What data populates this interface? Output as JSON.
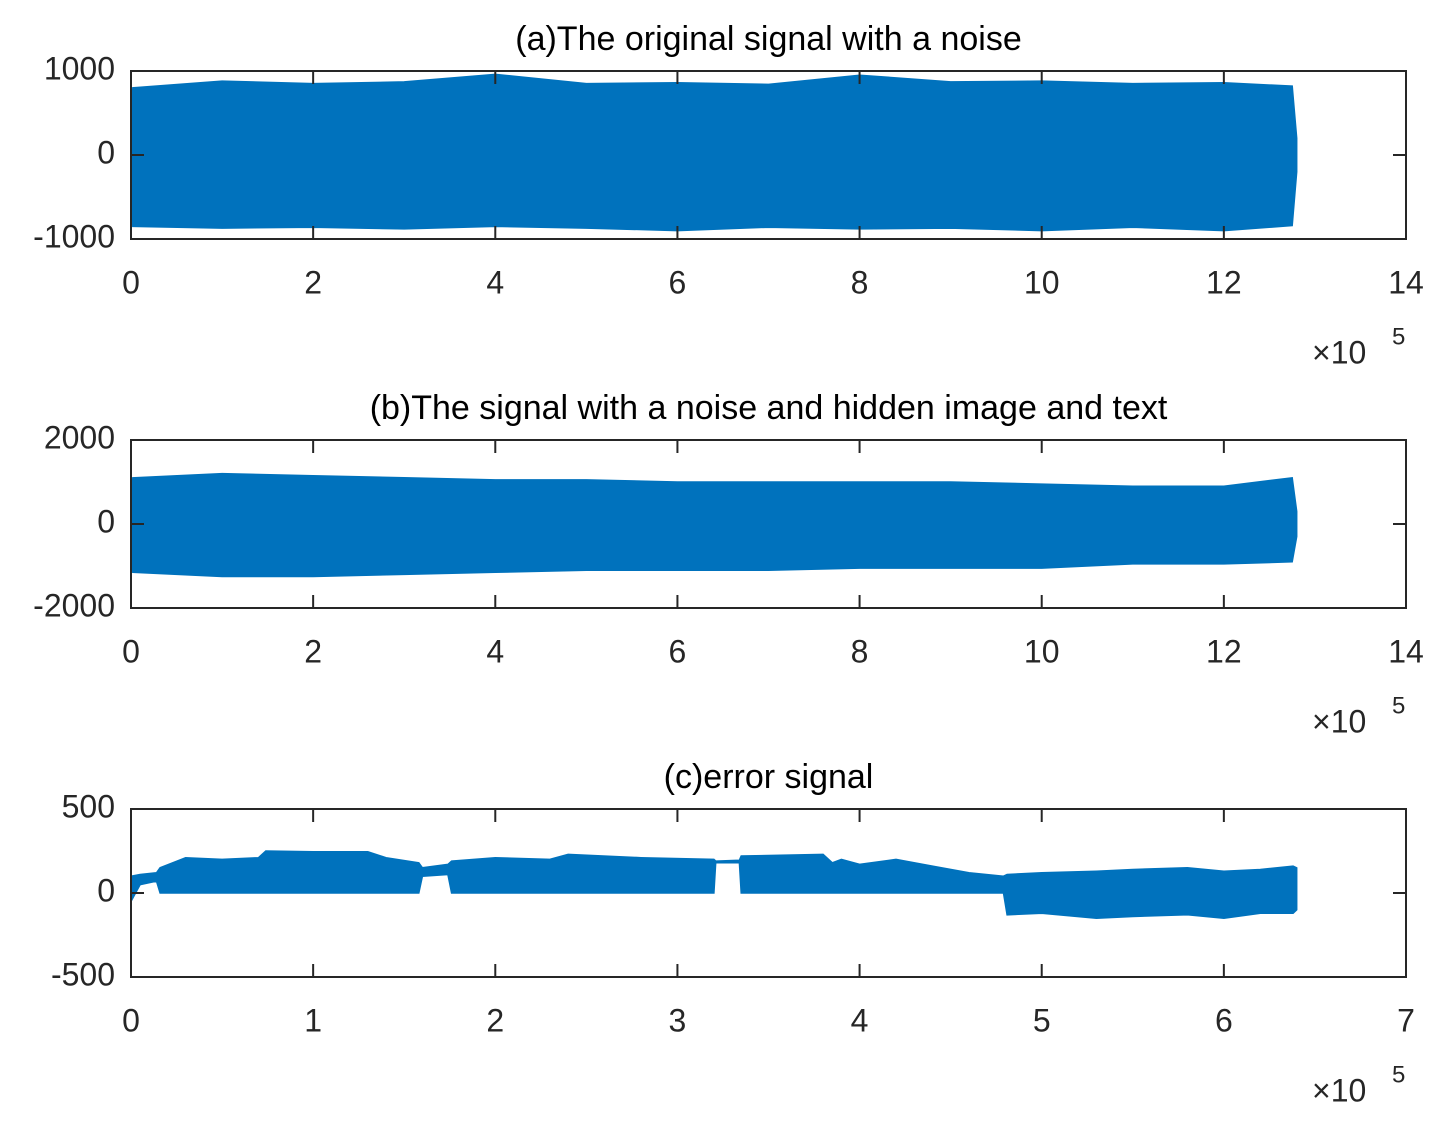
{
  "chart_data": [
    {
      "type": "band",
      "title": "(a)The original signal with a noise",
      "color": "#0072BD",
      "x": [
        0,
        0.02,
        1,
        2,
        3,
        4,
        5,
        6,
        7,
        8,
        9,
        10,
        11,
        12,
        12.75,
        12.8
      ],
      "upper": [
        0,
        800,
        880,
        850,
        870,
        960,
        850,
        860,
        840,
        950,
        870,
        880,
        850,
        860,
        820,
        200
      ],
      "lower": [
        0,
        -850,
        -870,
        -860,
        -880,
        -850,
        -870,
        -900,
        -860,
        -880,
        -870,
        -900,
        -860,
        -900,
        -840,
        -200
      ],
      "xlim": [
        0,
        14
      ],
      "xticks": [
        0,
        2,
        4,
        6,
        8,
        10,
        12,
        14
      ],
      "ylim": [
        -1000,
        1000
      ],
      "yticks": [
        -1000,
        0,
        1000
      ],
      "x_multiplier": "×10",
      "x_exponent": "5"
    },
    {
      "type": "band",
      "title": "(b)The signal with a noise and hidden image and text",
      "color": "#0072BD",
      "x": [
        0,
        0.02,
        1,
        2,
        3,
        4,
        5,
        6,
        7,
        8,
        9,
        10,
        11,
        12,
        12.75,
        12.8
      ],
      "upper": [
        0,
        1100,
        1200,
        1150,
        1100,
        1050,
        1050,
        1000,
        1000,
        1000,
        1000,
        950,
        900,
        900,
        1100,
        300
      ],
      "lower": [
        0,
        -1150,
        -1250,
        -1250,
        -1200,
        -1150,
        -1100,
        -1100,
        -1100,
        -1050,
        -1050,
        -1050,
        -950,
        -950,
        -900,
        -300
      ],
      "xlim": [
        0,
        14
      ],
      "xticks": [
        0,
        2,
        4,
        6,
        8,
        10,
        12,
        14
      ],
      "ylim": [
        -2000,
        2000
      ],
      "yticks": [
        -2000,
        0,
        2000
      ],
      "x_multiplier": "×10",
      "x_exponent": "5"
    },
    {
      "type": "band",
      "title": "(c)error signal",
      "color": "#0072BD",
      "x": [
        0,
        0.05,
        0.14,
        0.16,
        0.3,
        0.5,
        0.7,
        0.74,
        1.0,
        1.3,
        1.4,
        1.58,
        1.6,
        1.74,
        1.76,
        2.0,
        2.3,
        2.4,
        2.8,
        3.2,
        3.21,
        3.34,
        3.35,
        3.8,
        3.85,
        3.9,
        4.0,
        4.2,
        4.4,
        4.6,
        4.79,
        4.81,
        5.0,
        5.3,
        5.5,
        5.8,
        6.0,
        6.2,
        6.38,
        6.4
      ],
      "upper": [
        100,
        110,
        120,
        150,
        210,
        200,
        210,
        250,
        245,
        245,
        210,
        180,
        150,
        170,
        190,
        210,
        200,
        230,
        210,
        200,
        190,
        195,
        220,
        230,
        180,
        200,
        170,
        200,
        160,
        120,
        100,
        110,
        120,
        130,
        140,
        150,
        130,
        140,
        160,
        150
      ],
      "lower": [
        -50,
        50,
        70,
        0,
        0,
        0,
        0,
        0,
        0,
        0,
        0,
        0,
        100,
        110,
        0,
        0,
        0,
        0,
        0,
        0,
        180,
        180,
        0,
        0,
        0,
        0,
        0,
        0,
        0,
        0,
        0,
        -130,
        -120,
        -150,
        -140,
        -130,
        -150,
        -120,
        -120,
        -100
      ],
      "xlim": [
        0,
        7
      ],
      "xticks": [
        0,
        1,
        2,
        3,
        4,
        5,
        6,
        7
      ],
      "ylim": [
        -500,
        500
      ],
      "yticks": [
        -500,
        0,
        500
      ],
      "x_multiplier": "×10",
      "x_exponent": "5"
    }
  ]
}
